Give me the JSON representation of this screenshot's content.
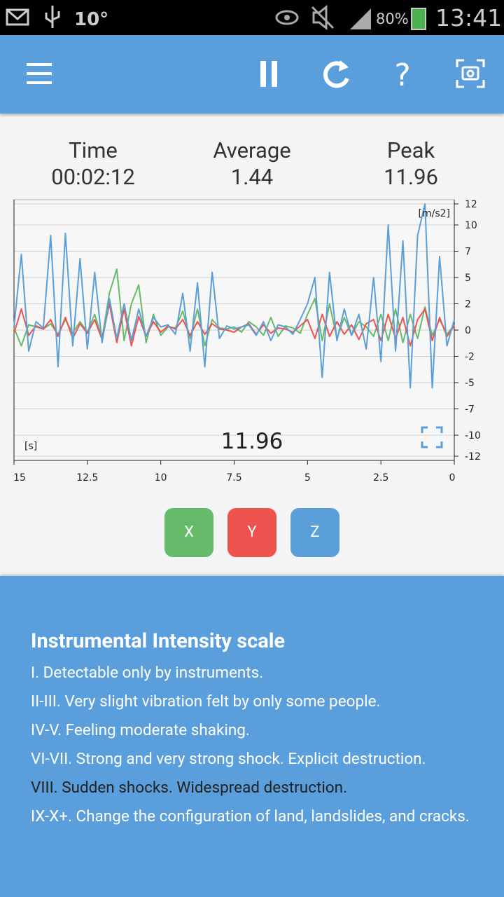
{
  "status_bar": {
    "temperature": "10°",
    "battery": "80%",
    "time": "13:41"
  },
  "stats": [
    {
      "label": "Time",
      "value": "00:02:12"
    },
    {
      "label": "Average",
      "value": "1.44"
    },
    {
      "label": "Peak",
      "value": "11.96"
    }
  ],
  "chart_data": {
    "type": "line",
    "y_unit": "[m/s2]",
    "x_unit": "[s]",
    "current_value": "11.96",
    "xlim": [
      15,
      0
    ],
    "ylim": [
      -12,
      12
    ],
    "xticks": [
      15,
      12.5,
      10,
      7.5,
      5,
      2.5,
      0
    ],
    "yticks": [
      12,
      10,
      {
        "value": 7.5,
        "label": "7"
      },
      5,
      {
        "value": 2.5,
        "label": "2"
      },
      0,
      {
        "value": -2.5,
        "label": "-2"
      },
      -5,
      {
        "value": -7.5,
        "label": "-7"
      },
      -10,
      -12
    ],
    "grid": true,
    "x": [
      15,
      14.75,
      14.5,
      14.25,
      14,
      13.75,
      13.5,
      13.25,
      13,
      12.75,
      12.5,
      12.25,
      12,
      11.75,
      11.5,
      11.25,
      11,
      10.75,
      10.5,
      10.25,
      10,
      9.75,
      9.5,
      9.25,
      9,
      8.75,
      8.5,
      8.25,
      8,
      7.75,
      7.5,
      7.25,
      7,
      6.75,
      6.5,
      6.25,
      6,
      5.75,
      5.5,
      5.25,
      5,
      4.75,
      4.5,
      4.25,
      4,
      3.75,
      3.5,
      3.25,
      3,
      2.75,
      2.5,
      2.25,
      2,
      1.75,
      1.5,
      1.25,
      1,
      0.75,
      0.5,
      0.25,
      0
    ],
    "series": [
      {
        "name": "X",
        "color": "#66bb6a",
        "values": [
          0.2,
          -1.5,
          0.5,
          0.3,
          0.1,
          0.6,
          -0.4,
          1.0,
          -0.3,
          0.8,
          -0.2,
          1.5,
          -0.8,
          3.5,
          5.8,
          -1.0,
          2.5,
          4.3,
          -1.2,
          1.5,
          -0.5,
          0.3,
          0.2,
          1.8,
          -0.8,
          2.0,
          -1.5,
          1.0,
          0.2,
          0.1,
          0.3,
          -0.2,
          0.8,
          0.3,
          -0.5,
          1.2,
          -0.6,
          0.4,
          0.2,
          -0.3,
          1.5,
          3.0,
          -1.0,
          2.5,
          -0.8,
          1.2,
          -0.5,
          0.8,
          0.3,
          -0.6,
          1.5,
          -1.0,
          2.0,
          -1.2,
          1.5,
          -0.8,
          2.2,
          -0.5,
          1.0,
          -0.4,
          0.5
        ]
      },
      {
        "name": "Y",
        "color": "#ef5350",
        "values": [
          -0.3,
          2.0,
          -0.5,
          0.4,
          0.1,
          1.0,
          -0.6,
          1.2,
          -0.8,
          0.6,
          -0.3,
          1.0,
          -0.9,
          2.5,
          -1.2,
          2.0,
          -1.5,
          1.3,
          -0.6,
          0.8,
          -0.2,
          0.4,
          0.1,
          1.0,
          -0.5,
          0.8,
          -0.4,
          0.6,
          0.1,
          0.0,
          -0.2,
          0.3,
          0.6,
          -0.4,
          0.5,
          -0.3,
          0.2,
          0.1,
          -0.2,
          0.4,
          1.0,
          -0.8,
          1.5,
          -0.6,
          0.8,
          -0.4,
          0.5,
          -0.9,
          0.6,
          1.0,
          -1.0,
          1.5,
          -0.8,
          1.2,
          -1.5,
          1.0,
          2.0,
          -1.0,
          1.2,
          -0.6,
          0.4
        ]
      },
      {
        "name": "Z",
        "color": "#5a9fd8",
        "values": [
          0.3,
          7.2,
          -2.0,
          0.8,
          0.2,
          9.0,
          -3.5,
          9.2,
          -1.5,
          6.8,
          -1.8,
          5.5,
          -1.2,
          3.0,
          -0.8,
          2.5,
          -1.0,
          2.0,
          -0.6,
          1.2,
          0.3,
          0.5,
          -0.4,
          3.5,
          -2.0,
          4.5,
          -3.5,
          5.5,
          -0.8,
          0.4,
          0.1,
          0.3,
          0.5,
          -0.5,
          0.8,
          -1.0,
          0.5,
          0.3,
          -0.4,
          1.0,
          2.5,
          5.0,
          -4.5,
          5.5,
          -1.0,
          2.0,
          -0.5,
          1.5,
          -1.8,
          5.0,
          -3.0,
          10.0,
          -2.0,
          8.5,
          -5.5,
          9.0,
          12.0,
          -5.5,
          7.0,
          -1.5,
          1.0
        ]
      }
    ]
  },
  "info": {
    "title": "Instrumental Intensity scale",
    "items": [
      "I. Detectable only by instruments.",
      "II-III. Very slight vibration felt by only some people.",
      "IV-V. Feeling moderate shaking.",
      "VI-VII. Strong and very strong shock. Explicit destruction.",
      "VIII. Sudden shocks. Widespread destruction.",
      "IX-X+. Change the configuration of land, landslides, and cracks."
    ]
  }
}
